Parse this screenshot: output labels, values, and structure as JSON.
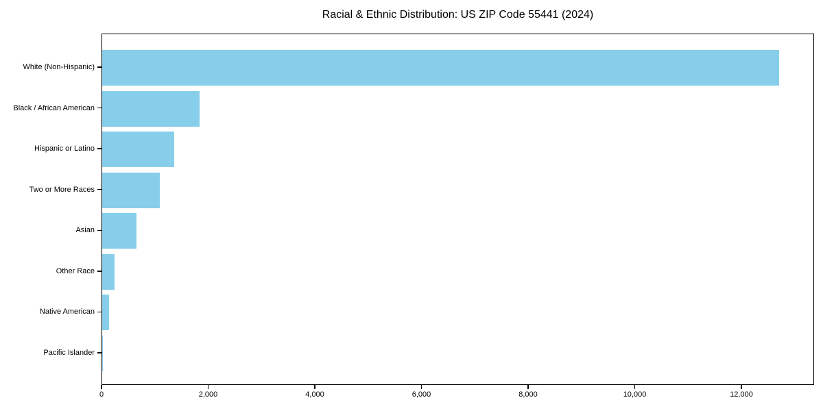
{
  "chart_data": {
    "type": "bar",
    "orientation": "horizontal",
    "title": "Racial & Ethnic Distribution: US ZIP Code 55441 (2024)",
    "categories": [
      "White (Non-Hispanic)",
      "Black / African American",
      "Hispanic or Latino",
      "Two or More Races",
      "Asian",
      "Other Race",
      "Native American",
      "Pacific Islander"
    ],
    "values": [
      12700,
      1820,
      1350,
      1080,
      640,
      230,
      130,
      10
    ],
    "xlabel": "",
    "ylabel": "",
    "xlim": [
      0,
      13363
    ],
    "xticks": [
      0,
      2000,
      4000,
      6000,
      8000,
      10000,
      12000
    ],
    "xtick_labels": [
      "0",
      "2,000",
      "4,000",
      "6,000",
      "8,000",
      "10,000",
      "12,000"
    ],
    "bar_color": "#87CEEB",
    "axis_color": "#000000",
    "text_color": "#000000",
    "background_color": "#ffffff",
    "grid": false,
    "legend": null
  }
}
